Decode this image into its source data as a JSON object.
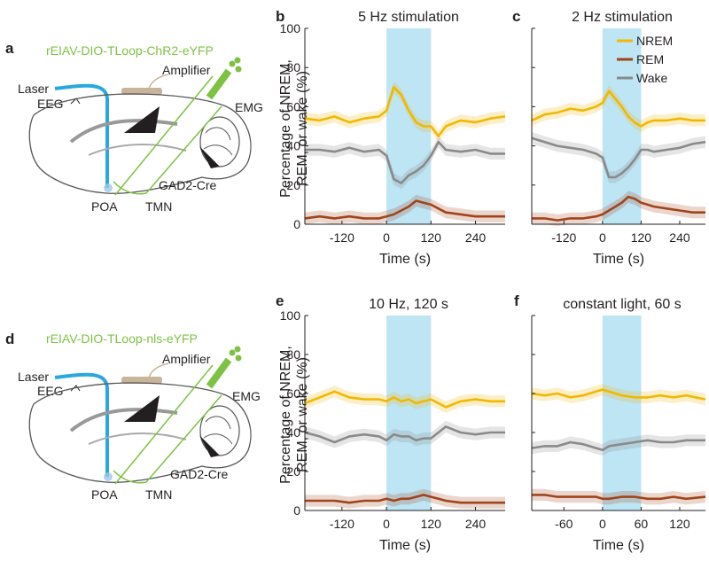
{
  "panel_labels": {
    "a": "a",
    "b": "b",
    "c": "c",
    "d": "d",
    "e": "e",
    "f": "f"
  },
  "colors": {
    "nrem": "#f2b800",
    "rem": "#a0441c",
    "wake": "#8a8a8a",
    "stim": "#a8dcf0",
    "virus": "#7dc242",
    "laser": "#29a8e0",
    "amplifier": "#c8b49a"
  },
  "diagram_a": {
    "virus": "rEIAV-DIO-TLoop-ChR2-eYFP",
    "laser": "Laser",
    "amplifier": "Amplifier",
    "eeg": "EEG",
    "emg": "EMG",
    "cre": "GAD2-Cre",
    "poa": "POA",
    "tmn": "TMN"
  },
  "diagram_d": {
    "virus": "rEIAV-DIO-TLoop-nls-eYFP",
    "laser": "Laser",
    "amplifier": "Amplifier",
    "eeg": "EEG",
    "emg": "EMG",
    "cre": "GAD2-Cre",
    "poa": "POA",
    "tmn": "TMN"
  },
  "ylabel_line1": "Percentage of NREM,",
  "ylabel_line2": "REM, or wake (%)",
  "legend": [
    "NREM",
    "REM",
    "Wake"
  ],
  "chart_data": [
    {
      "id": "b",
      "type": "line",
      "title": "5 Hz stimulation",
      "xlabel": "Time (s)",
      "xlim": [
        -220,
        320
      ],
      "ylim": [
        0,
        100
      ],
      "xticks": [
        "-120",
        "0",
        "120",
        "240"
      ],
      "yticks": [
        "0",
        "20",
        "40",
        "60",
        "80",
        "100"
      ],
      "stim": [
        0,
        120
      ],
      "x": [
        -220,
        -180,
        -140,
        -100,
        -60,
        -20,
        0,
        20,
        40,
        60,
        80,
        100,
        120,
        140,
        160,
        200,
        240,
        280,
        320
      ],
      "series": [
        {
          "name": "NREM",
          "values": [
            54,
            53,
            55,
            52,
            54,
            55,
            58,
            70,
            66,
            58,
            52,
            50,
            50,
            45,
            50,
            53,
            52,
            54,
            55
          ]
        },
        {
          "name": "REM",
          "values": [
            3,
            4,
            3,
            4,
            3,
            3,
            4,
            5,
            7,
            9,
            12,
            11,
            10,
            8,
            6,
            5,
            4,
            4,
            4
          ]
        },
        {
          "name": "Wake",
          "values": [
            38,
            38,
            37,
            39,
            37,
            38,
            35,
            23,
            21,
            25,
            27,
            30,
            35,
            42,
            38,
            37,
            38,
            36,
            36
          ]
        }
      ]
    },
    {
      "id": "c",
      "type": "line",
      "title": "2 Hz stimulation",
      "xlabel": "Time (s)",
      "xlim": [
        -220,
        320
      ],
      "ylim": [
        0,
        100
      ],
      "xticks": [
        "-120",
        "0",
        "120",
        "240"
      ],
      "yticks": [],
      "stim": [
        0,
        120
      ],
      "x": [
        -220,
        -180,
        -140,
        -100,
        -60,
        -20,
        0,
        20,
        40,
        60,
        80,
        100,
        120,
        140,
        160,
        200,
        240,
        280,
        320
      ],
      "series": [
        {
          "name": "NREM",
          "values": [
            53,
            56,
            57,
            59,
            58,
            60,
            62,
            68,
            64,
            60,
            55,
            52,
            50,
            52,
            53,
            53,
            54,
            53,
            53
          ]
        },
        {
          "name": "REM",
          "values": [
            3,
            3,
            2,
            3,
            3,
            4,
            5,
            7,
            9,
            11,
            14,
            13,
            11,
            10,
            9,
            8,
            7,
            6,
            6
          ]
        },
        {
          "name": "Wake",
          "values": [
            44,
            42,
            40,
            39,
            38,
            36,
            34,
            24,
            24,
            26,
            29,
            33,
            38,
            38,
            37,
            38,
            39,
            41,
            42
          ]
        }
      ]
    },
    {
      "id": "e",
      "type": "line",
      "title": "10 Hz, 120 s",
      "xlabel": "Time (s)",
      "xlim": [
        -220,
        320
      ],
      "ylim": [
        0,
        100
      ],
      "xticks": [
        "-120",
        "0",
        "120",
        "240"
      ],
      "yticks": [
        "0",
        "20",
        "40",
        "60",
        "80",
        "100"
      ],
      "stim": [
        0,
        120
      ],
      "x": [
        -220,
        -180,
        -140,
        -100,
        -60,
        -20,
        0,
        20,
        40,
        60,
        80,
        100,
        120,
        140,
        160,
        200,
        240,
        280,
        320
      ],
      "series": [
        {
          "name": "NREM",
          "values": [
            55,
            58,
            61,
            58,
            57,
            57,
            56,
            58,
            56,
            57,
            55,
            56,
            57,
            55,
            53,
            56,
            57,
            56,
            56
          ]
        },
        {
          "name": "REM",
          "values": [
            5,
            5,
            5,
            4,
            5,
            5,
            6,
            5,
            6,
            6,
            7,
            8,
            7,
            6,
            5,
            4,
            4,
            4,
            4
          ]
        },
        {
          "name": "Wake",
          "values": [
            40,
            38,
            35,
            38,
            39,
            38,
            36,
            39,
            38,
            38,
            36,
            37,
            37,
            40,
            43,
            40,
            39,
            40,
            40
          ]
        }
      ]
    },
    {
      "id": "f",
      "type": "line",
      "title": "constant light, 60 s",
      "xlabel": "Time (s)",
      "xlim": [
        -110,
        160
      ],
      "ylim": [
        0,
        100
      ],
      "xticks": [
        "-60",
        "0",
        "60",
        "120"
      ],
      "yticks": [],
      "stim": [
        0,
        60
      ],
      "x": [
        -110,
        -90,
        -70,
        -50,
        -30,
        -10,
        0,
        10,
        30,
        50,
        70,
        90,
        110,
        130,
        160
      ],
      "series": [
        {
          "name": "NREM",
          "values": [
            60,
            59,
            60,
            58,
            59,
            61,
            62,
            61,
            59,
            58,
            58,
            59,
            58,
            59,
            57
          ]
        },
        {
          "name": "REM",
          "values": [
            8,
            8,
            7,
            7,
            7,
            7,
            6,
            6,
            7,
            7,
            6,
            6,
            7,
            6,
            7
          ]
        },
        {
          "name": "Wake",
          "values": [
            32,
            33,
            33,
            35,
            34,
            32,
            31,
            33,
            34,
            35,
            36,
            35,
            35,
            36,
            36
          ]
        }
      ]
    }
  ]
}
